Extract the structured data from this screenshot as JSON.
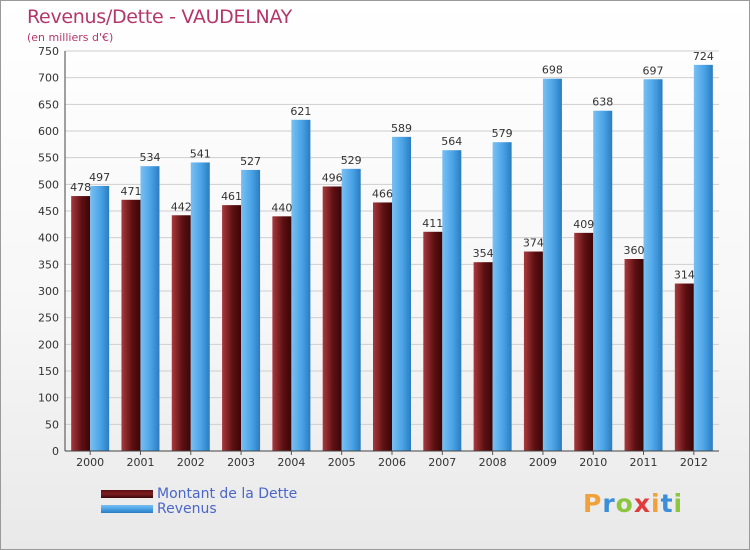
{
  "title": "Revenus/Dette - VAUDELNAY",
  "subtitle": "(en milliers d'€)",
  "chart_data": {
    "type": "bar",
    "categories": [
      "2000",
      "2001",
      "2002",
      "2003",
      "2004",
      "2005",
      "2006",
      "2007",
      "2008",
      "2009",
      "2010",
      "2011",
      "2012"
    ],
    "series": [
      {
        "name": "Montant de la Dette",
        "color": "#7b1d20",
        "values": [
          478,
          471,
          442,
          461,
          440,
          496,
          466,
          411,
          354,
          374,
          409,
          360,
          314
        ]
      },
      {
        "name": "Revenus",
        "color": "#4aa3e6",
        "values": [
          497,
          534,
          541,
          527,
          621,
          529,
          589,
          564,
          579,
          698,
          638,
          697,
          724
        ]
      }
    ],
    "ylim": [
      0,
      750
    ],
    "yticks": [
      0,
      50,
      100,
      150,
      200,
      250,
      300,
      350,
      400,
      450,
      500,
      550,
      600,
      650,
      700,
      750
    ],
    "grid": true,
    "legend_position": "bottom-left"
  },
  "legend": [
    {
      "label": "Montant de la Dette",
      "color": "#7b1d20"
    },
    {
      "label": "Revenus",
      "color": "#4aa3e6"
    }
  ],
  "brand": {
    "letters": [
      "P",
      "r",
      "o",
      "x",
      "i",
      "t",
      "i"
    ],
    "colors": [
      "#f0a13a",
      "#3b8fd9",
      "#8cc63f",
      "#e23b3b",
      "#f0a13a",
      "#3b8fd9",
      "#8cc63f"
    ]
  }
}
